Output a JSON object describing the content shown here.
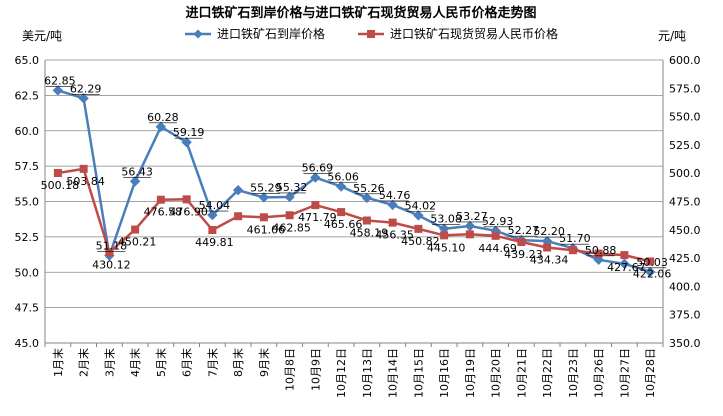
{
  "chart_data": {
    "type": "line",
    "title": "进口铁矿石到岸价格与进口铁矿石现货贸易人民币价格走势图",
    "left_axis_unit": "美元/吨",
    "right_axis_unit": "元/吨",
    "categories": [
      "1月末",
      "2月末",
      "3月末",
      "4月末",
      "5月末",
      "6月末",
      "7月末",
      "8月末",
      "9月末",
      "10月8日",
      "10月9日",
      "10月12日",
      "10月13日",
      "10月14日",
      "10月15日",
      "10月16日",
      "10月19日",
      "10月20日",
      "10月21日",
      "10月22日",
      "10月23日",
      "10月26日",
      "10月27日",
      "10月28日"
    ],
    "left_ylim": [
      45.0,
      65.0
    ],
    "left_yticks": [
      "45.0",
      "47.5",
      "50.0",
      "52.5",
      "55.0",
      "57.5",
      "60.0",
      "62.5",
      "65.0"
    ],
    "right_ylim": [
      350.0,
      600.0
    ],
    "right_yticks": [
      "350.0",
      "375.0",
      "400.0",
      "425.0",
      "450.0",
      "475.0",
      "500.0",
      "525.0",
      "550.0",
      "575.0",
      "600.0"
    ],
    "grid": "horizontal",
    "legend_position": "top",
    "series": [
      {
        "name": "进口铁矿石到岸价格",
        "axis": "left",
        "color": "#4a7ebb",
        "marker": "diamond",
        "values": [
          62.85,
          62.29,
          51.18,
          56.43,
          60.28,
          59.19,
          54.04,
          55.8,
          55.29,
          55.32,
          56.69,
          56.06,
          55.26,
          54.76,
          54.02,
          53.08,
          53.27,
          52.93,
          52.27,
          52.2,
          51.7,
          50.88,
          50.6,
          50.03
        ],
        "labels": [
          "62.85",
          "62.29",
          "51.18",
          "56.43",
          "60.28",
          "59.19",
          "54.04",
          "",
          "55.29",
          "55.32",
          "56.69",
          "56.06",
          "55.26",
          "54.76",
          "54.02",
          "53.08",
          "53.27",
          "52.93",
          "52.27",
          "52.20",
          "51.70",
          "50.88",
          "",
          "50.03"
        ]
      },
      {
        "name": "进口铁矿石现货贸易人民币价格",
        "axis": "right",
        "color": "#be4b48",
        "marker": "square",
        "values": [
          500.18,
          503.84,
          430.12,
          450.21,
          476.58,
          476.9,
          449.81,
          462.0,
          461.06,
          462.85,
          471.79,
          465.66,
          458.19,
          456.35,
          450.82,
          445.1,
          446.0,
          444.69,
          439.23,
          434.34,
          432.0,
          429.0,
          427.67,
          422.06
        ],
        "labels": [
          "500.18",
          "503.84",
          "430.12",
          "450.21",
          "476.58",
          "476.90",
          "449.81",
          "",
          "461.06",
          "462.85",
          "471.79",
          "465.66",
          "458.19",
          "456.35",
          "450.82",
          "445.10",
          "",
          "444.69",
          "439.23",
          "434.34",
          "",
          "",
          "427.67",
          "422.06"
        ]
      }
    ]
  }
}
